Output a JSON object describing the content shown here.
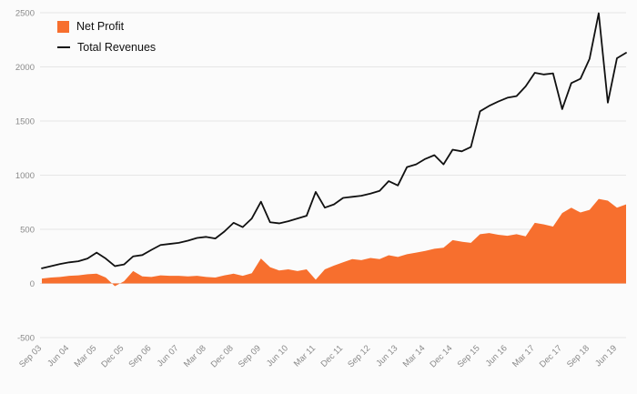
{
  "page": {
    "background": "#fbfbfb"
  },
  "legend": {
    "items": [
      {
        "label": "Net Profit",
        "type": "area",
        "color": "#f76f2e"
      },
      {
        "label": "Total Revenues",
        "type": "line",
        "color": "#111111"
      }
    ]
  },
  "axes": {
    "y_tick_labels": [
      "-500",
      "0",
      "500",
      "1000",
      "1500",
      "2000",
      "2500"
    ],
    "grid_color": "#e6e6e6",
    "tick_label_color": "#8a8a8a"
  },
  "chart_data": {
    "type": "area",
    "title": "",
    "xlabel": "",
    "ylabel": "",
    "ylim": [
      -500,
      2500
    ],
    "y_ticks": [
      -500,
      0,
      500,
      1000,
      1500,
      2000,
      2500
    ],
    "grid": true,
    "legend_position": "top-left",
    "x_tick_every": 3,
    "x": [
      "Sep 03",
      "Dec 03",
      "Mar 04",
      "Jun 04",
      "Sep 04",
      "Dec 04",
      "Mar 05",
      "Jun 05",
      "Sep 05",
      "Dec 05",
      "Mar 06",
      "Jun 06",
      "Sep 06",
      "Dec 06",
      "Mar 07",
      "Jun 07",
      "Sep 07",
      "Dec 07",
      "Mar 08",
      "Jun 08",
      "Sep 08",
      "Dec 08",
      "Mar 09",
      "Jun 09",
      "Sep 09",
      "Dec 09",
      "Mar 10",
      "Jun 10",
      "Sep 10",
      "Dec 10",
      "Mar 11",
      "Jun 11",
      "Sep 11",
      "Dec 11",
      "Mar 12",
      "Jun 12",
      "Sep 12",
      "Dec 12",
      "Mar 13",
      "Jun 13",
      "Sep 13",
      "Dec 13",
      "Mar 14",
      "Jun 14",
      "Sep 14",
      "Dec 14",
      "Mar 15",
      "Jun 15",
      "Sep 15",
      "Dec 15",
      "Mar 16",
      "Jun 16",
      "Sep 16",
      "Dec 16",
      "Mar 17",
      "Jun 17",
      "Sep 17",
      "Dec 17",
      "Mar 18",
      "Jun 18",
      "Sep 18",
      "Dec 18",
      "Mar 19",
      "Jun 19",
      "Sep 19"
    ],
    "series": [
      {
        "name": "Net Profit",
        "type": "area",
        "color": "#f76f2e",
        "values": [
          45,
          55,
          60,
          70,
          75,
          85,
          90,
          55,
          -25,
          20,
          115,
          65,
          60,
          75,
          70,
          70,
          65,
          70,
          60,
          55,
          75,
          90,
          70,
          95,
          230,
          150,
          120,
          130,
          115,
          130,
          35,
          130,
          165,
          195,
          225,
          215,
          235,
          225,
          260,
          245,
          270,
          285,
          300,
          320,
          330,
          400,
          385,
          375,
          455,
          465,
          450,
          440,
          455,
          435,
          560,
          545,
          525,
          650,
          700,
          655,
          680,
          780,
          765,
          700,
          730
        ]
      },
      {
        "name": "Total Revenues",
        "type": "line",
        "color": "#111111",
        "values": [
          140,
          160,
          180,
          195,
          205,
          230,
          285,
          230,
          160,
          175,
          250,
          262,
          310,
          355,
          365,
          375,
          395,
          420,
          430,
          415,
          480,
          560,
          520,
          600,
          755,
          565,
          555,
          575,
          600,
          625,
          845,
          700,
          730,
          790,
          800,
          810,
          830,
          855,
          945,
          905,
          1075,
          1100,
          1150,
          1185,
          1100,
          1235,
          1220,
          1260,
          1590,
          1640,
          1680,
          1715,
          1730,
          1820,
          1945,
          1930,
          1940,
          1610,
          1850,
          1890,
          2075,
          2495,
          1670,
          2080,
          2130
        ]
      }
    ]
  }
}
